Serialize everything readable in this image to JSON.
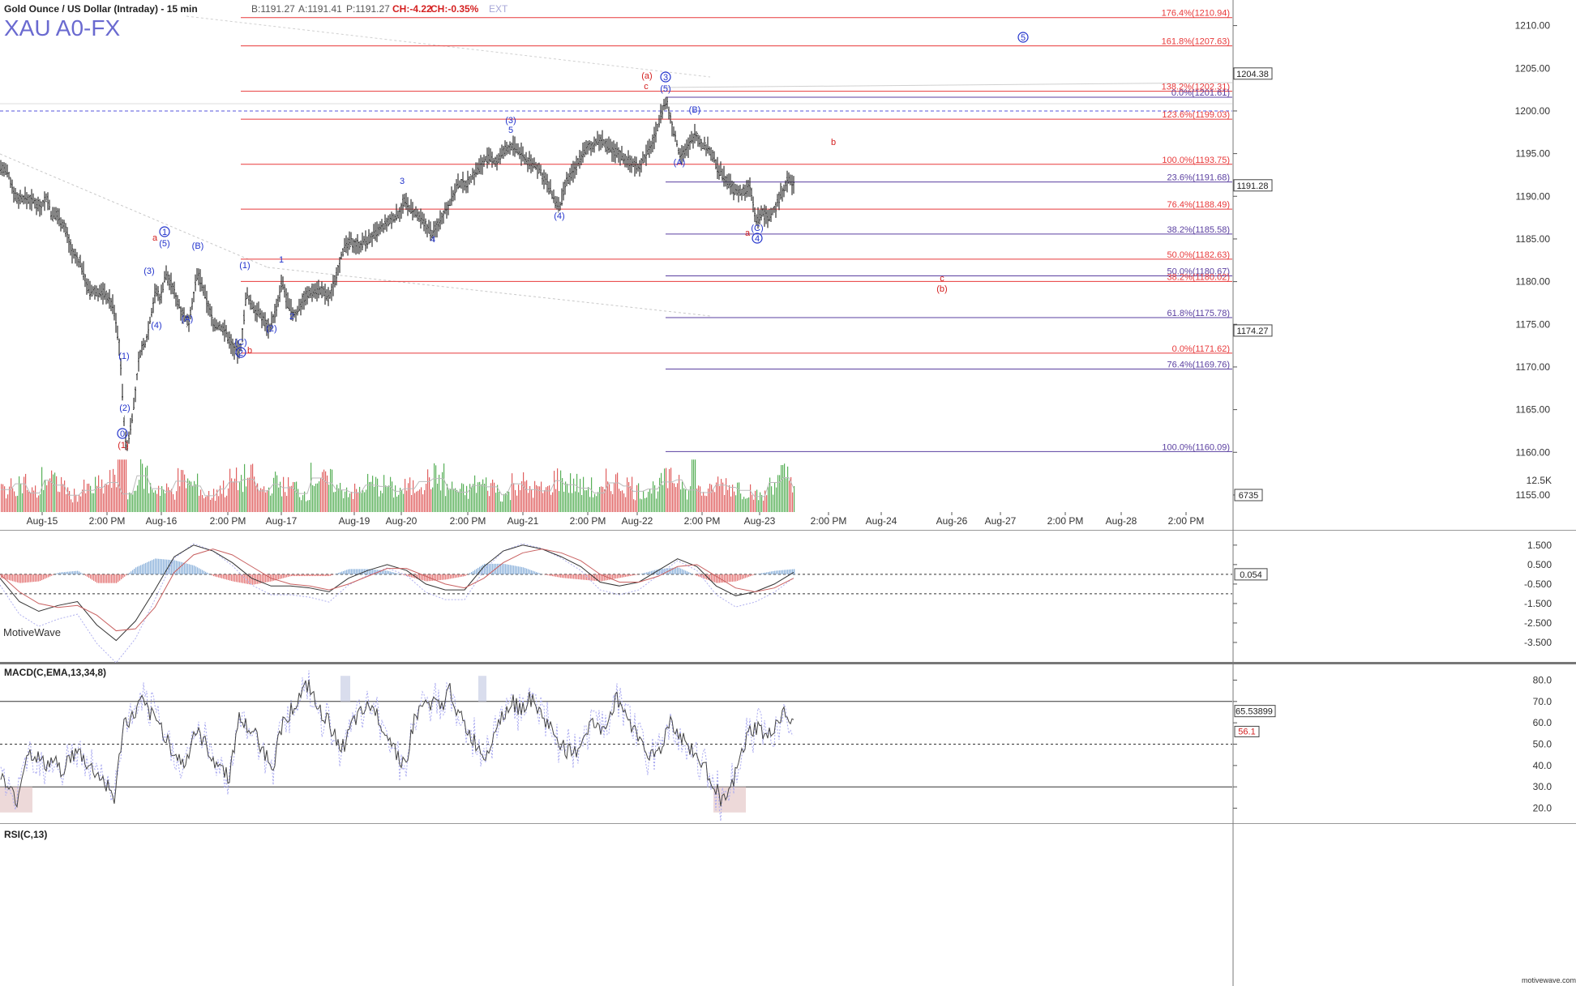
{
  "header": {
    "instrument": "Gold Ounce / US Dollar (Intraday) - 15 min",
    "bid": "B:1191.27",
    "ask": "A:1191.41",
    "price": "P:1191.27",
    "change": "CH:-4.22",
    "change_pct": "CH:-0.35%",
    "ext": "EXT",
    "symbol": "XAU A0-FX",
    "watermark": "MotiveWave",
    "brand_footer": "motivewave.com"
  },
  "colors": {
    "fib_red": "#e8393a",
    "fib_purple": "#5a3fa0",
    "wave_blue": "#2233cc",
    "wave_red": "#d42020",
    "price_bar": "#333333",
    "vol_green": "#58b058",
    "vol_red": "#e06060",
    "macd_up": "#8fb4dc",
    "macd_down": "#e57a7a",
    "rsi_line": "#444444",
    "rsi_dotted": "#a8a8f0"
  },
  "chart_data": [
    {
      "type": "line",
      "title": "Gold Ounce / US Dollar (Intraday) - 15 min",
      "ylim": [
        1153,
        1213
      ],
      "yticks": [
        1155,
        1160,
        1165,
        1170,
        1175,
        1180,
        1185,
        1190,
        1195,
        1200,
        1205,
        1210
      ],
      "x_labels": [
        "Aug-15",
        "2:00 PM",
        "Aug-16",
        "2:00 PM",
        "Aug-17",
        "Aug-19",
        "Aug-20",
        "2:00 PM",
        "Aug-21",
        "2:00 PM",
        "Aug-22",
        "2:00 PM",
        "Aug-23",
        "2:00 PM",
        "Aug-24",
        "Aug-26",
        "Aug-27",
        "2:00 PM",
        "Aug-28",
        "2:00 PM"
      ],
      "x_label_positions": [
        52,
        132,
        199,
        281,
        347,
        437,
        495,
        577,
        645,
        725,
        786,
        866,
        937,
        1022,
        1087,
        1174,
        1234,
        1314,
        1383,
        1463
      ],
      "price_path": [
        [
          0,
          1193.5
        ],
        [
          10,
          1192.6
        ],
        [
          20,
          1189.8
        ],
        [
          30,
          1189.8
        ],
        [
          40,
          1189.5
        ],
        [
          50,
          1188.8
        ],
        [
          58,
          1190.0
        ],
        [
          64,
          1187.5
        ],
        [
          70,
          1188.0
        ],
        [
          80,
          1186.3
        ],
        [
          90,
          1183.2
        ],
        [
          100,
          1182.0
        ],
        [
          110,
          1178.8
        ],
        [
          120,
          1178.8
        ],
        [
          130,
          1178.6
        ],
        [
          140,
          1177.0
        ],
        [
          148,
          1172.0
        ],
        [
          152,
          1165.0
        ],
        [
          156,
          1160.0
        ],
        [
          160,
          1162.5
        ],
        [
          166,
          1166.0
        ],
        [
          172,
          1171.5
        ],
        [
          180,
          1173.0
        ],
        [
          186,
          1176.0
        ],
        [
          192,
          1179.0
        ],
        [
          198,
          1178.0
        ],
        [
          204,
          1181.0
        ],
        [
          212,
          1179.5
        ],
        [
          222,
          1177.0
        ],
        [
          232,
          1175.0
        ],
        [
          244,
          1181.0
        ],
        [
          254,
          1178.0
        ],
        [
          264,
          1175.0
        ],
        [
          276,
          1174.5
        ],
        [
          288,
          1172.2
        ],
        [
          296,
          1171.5
        ],
        [
          304,
          1178.5
        ],
        [
          312,
          1177.0
        ],
        [
          322,
          1176.0
        ],
        [
          332,
          1174.5
        ],
        [
          342,
          1177.0
        ],
        [
          348,
          1180.0
        ],
        [
          356,
          1177.0
        ],
        [
          364,
          1176.0
        ],
        [
          374,
          1178.0
        ],
        [
          386,
          1179.0
        ],
        [
          396,
          1179.0
        ],
        [
          406,
          1178.0
        ],
        [
          414,
          1180.5
        ],
        [
          422,
          1183.5
        ],
        [
          432,
          1184.6
        ],
        [
          444,
          1184.3
        ],
        [
          456,
          1185.0
        ],
        [
          468,
          1186.0
        ],
        [
          480,
          1187.0
        ],
        [
          492,
          1188.0
        ],
        [
          498,
          1189.4
        ],
        [
          506,
          1188.5
        ],
        [
          516,
          1187.5
        ],
        [
          526,
          1186.5
        ],
        [
          534,
          1185.5
        ],
        [
          544,
          1187.5
        ],
        [
          554,
          1189.2
        ],
        [
          566,
          1191.5
        ],
        [
          576,
          1191.5
        ],
        [
          588,
          1193.0
        ],
        [
          600,
          1194.5
        ],
        [
          612,
          1194.0
        ],
        [
          624,
          1195.5
        ],
        [
          632,
          1195.9
        ],
        [
          642,
          1195.0
        ],
        [
          652,
          1194.0
        ],
        [
          662,
          1193.5
        ],
        [
          672,
          1192.0
        ],
        [
          682,
          1190.0
        ],
        [
          690,
          1188.4
        ],
        [
          698,
          1191.5
        ],
        [
          708,
          1193.0
        ],
        [
          718,
          1195.0
        ],
        [
          730,
          1196.0
        ],
        [
          742,
          1196.6
        ],
        [
          752,
          1195.5
        ],
        [
          764,
          1195.0
        ],
        [
          776,
          1194.0
        ],
        [
          788,
          1193.5
        ],
        [
          798,
          1195.0
        ],
        [
          808,
          1197.0
        ],
        [
          816,
          1200.0
        ],
        [
          822,
          1201.0
        ],
        [
          830,
          1198.0
        ],
        [
          838,
          1195.0
        ],
        [
          848,
          1195.5
        ],
        [
          858,
          1197.5
        ],
        [
          866,
          1196.0
        ],
        [
          876,
          1195.5
        ],
        [
          886,
          1193.0
        ],
        [
          896,
          1192.0
        ],
        [
          906,
          1190.5
        ],
        [
          916,
          1190.5
        ],
        [
          926,
          1191.0
        ],
        [
          932,
          1187.0
        ],
        [
          940,
          1188.0
        ],
        [
          948,
          1187.5
        ],
        [
          956,
          1188.5
        ],
        [
          964,
          1190.5
        ],
        [
          972,
          1192.0
        ],
        [
          979,
          1191.3
        ]
      ]
    },
    {
      "type": "bar",
      "title": "Volume",
      "ylim": [
        0,
        13500
      ],
      "yticks": [
        "12.5K"
      ],
      "last_value": "6735",
      "series": [
        {
          "values": [
            5100,
            6400,
            4300,
            7200,
            6100,
            3800,
            4900,
            5600,
            6700,
            4100,
            8200,
            5300,
            4600,
            7000,
            5900,
            3700,
            5200,
            6800,
            7400,
            4800,
            6300,
            5500,
            4200,
            7700,
            6600,
            5000,
            4400,
            6100,
            5800,
            4700,
            5300,
            6900,
            7600,
            5200,
            4500,
            6000,
            5700,
            3900,
            6400,
            5100,
            4800,
            7100,
            6200,
            5400,
            4300,
            6600,
            5900,
            4700,
            5200,
            6800,
            7300,
            5000,
            4400,
            6100,
            5600,
            4900,
            3500,
            6700,
            7800,
            5400
          ]
        }
      ]
    },
    {
      "type": "line",
      "title": "MACD(C,EMA,13,34,8)",
      "ylim": [
        -4.5,
        2.2
      ],
      "yticks": [
        1.5,
        0.5,
        -0.5,
        -1.5,
        -2.5,
        -3.5
      ],
      "last_value": "0.054",
      "series": [
        {
          "name": "MACD",
          "values": [
            -0.2,
            -1.4,
            -1.9,
            -1.6,
            -1.4,
            -2.6,
            -3.4,
            -2.4,
            -0.8,
            0.9,
            1.5,
            1.2,
            0.6,
            -0.2,
            -0.6,
            -0.6,
            -0.7,
            -0.9,
            -0.2,
            0.2,
            0.5,
            0.2,
            -0.5,
            -0.8,
            -0.8,
            0.4,
            1.2,
            1.5,
            1.3,
            0.9,
            0.4,
            -0.4,
            -0.6,
            -0.4,
            0.2,
            0.8,
            0.4,
            -0.6,
            -1.1,
            -0.9,
            -0.5,
            0.1
          ]
        },
        {
          "name": "Signal",
          "values": [
            0.0,
            -0.9,
            -1.5,
            -1.7,
            -1.6,
            -2.1,
            -2.9,
            -2.8,
            -1.7,
            0.1,
            1.0,
            1.3,
            1.0,
            0.4,
            -0.2,
            -0.5,
            -0.6,
            -0.8,
            -0.5,
            -0.1,
            0.3,
            0.3,
            -0.1,
            -0.5,
            -0.7,
            -0.2,
            0.6,
            1.1,
            1.3,
            1.1,
            0.7,
            0.0,
            -0.4,
            -0.4,
            -0.1,
            0.4,
            0.5,
            -0.1,
            -0.7,
            -0.9,
            -0.7,
            -0.2
          ]
        }
      ]
    },
    {
      "type": "line",
      "title": "RSI(C,13)",
      "ylim": [
        13,
        87
      ],
      "yticks": [
        80.0,
        70.0,
        60.0,
        50.0,
        40.0,
        30.0,
        20.0
      ],
      "reference_lines": [
        70,
        50,
        30
      ],
      "last_value": "56.1",
      "last_value_2": "65.53899",
      "series": [
        {
          "name": "RSI",
          "values": [
            35,
            28,
            24,
            46,
            45,
            40,
            42,
            38,
            44,
            46,
            40,
            36,
            32,
            24,
            60,
            62,
            70,
            64,
            60,
            52,
            44,
            40,
            56,
            52,
            44,
            40,
            34,
            62,
            58,
            54,
            46,
            40,
            60,
            66,
            72,
            78,
            66,
            62,
            54,
            48,
            60,
            64,
            68,
            62,
            54,
            46,
            40,
            62,
            68,
            70,
            66,
            76,
            64,
            56,
            50,
            44,
            56,
            64,
            70,
            66,
            72,
            66,
            60,
            54,
            48,
            44,
            52,
            60,
            56,
            62,
            72,
            64,
            56,
            50,
            44,
            48,
            62,
            54,
            50,
            44,
            38,
            32,
            22,
            30,
            44,
            56,
            58,
            52,
            60,
            64,
            58
          ]
        }
      ]
    }
  ],
  "fib_levels": [
    {
      "label": "176.4%(1210.94)",
      "value": 1210.94,
      "color": "red",
      "x1": 297
    },
    {
      "label": "161.8%(1207.63)",
      "value": 1207.63,
      "color": "red",
      "x1": 297
    },
    {
      "label": "138.2%(1202.31)",
      "value": 1202.31,
      "color": "red",
      "x1": 297
    },
    {
      "label": "0.0%(1201.61)",
      "value": 1201.61,
      "color": "purple",
      "x1": 821
    },
    {
      "label": "123.6%(1199.03)",
      "value": 1199.03,
      "color": "red",
      "x1": 297
    },
    {
      "label": "100.0%(1193.75)",
      "value": 1193.75,
      "color": "red",
      "x1": 297
    },
    {
      "label": "23.6%(1191.68)",
      "value": 1191.68,
      "color": "purple",
      "x1": 821
    },
    {
      "label": "76.4%(1188.49)",
      "value": 1188.49,
      "color": "red",
      "x1": 297
    },
    {
      "label": "38.2%(1185.58)",
      "value": 1185.58,
      "color": "purple",
      "x1": 821
    },
    {
      "label": "50.0%(1182.63)",
      "value": 1182.63,
      "color": "red",
      "x1": 297
    },
    {
      "label": "50.0%(1180.67)",
      "value": 1180.67,
      "color": "purple",
      "x1": 821
    },
    {
      "label": "38.2%(1180.02)",
      "value": 1180.02,
      "color": "red",
      "x1": 297
    },
    {
      "label": "61.8%(1175.78)",
      "value": 1175.78,
      "color": "purple",
      "x1": 821
    },
    {
      "label": "0.0%(1171.62)",
      "value": 1171.62,
      "color": "red",
      "x1": 297
    },
    {
      "label": "76.4%(1169.76)",
      "value": 1169.76,
      "color": "purple",
      "x1": 821
    },
    {
      "label": "100.0%(1160.09)",
      "value": 1160.09,
      "color": "purple",
      "x1": 821
    }
  ],
  "price_tags": [
    {
      "label": "1204.38",
      "value": 1204.38
    },
    {
      "label": "1191.28",
      "value": 1191.28
    },
    {
      "label": "1174.27",
      "value": 1174.27
    }
  ],
  "wave_labels": [
    {
      "text": "1",
      "x": 203,
      "y": 290,
      "color": "blue",
      "circle": true
    },
    {
      "text": "(5)",
      "x": 203,
      "y": 304,
      "color": "blue"
    },
    {
      "text": "a",
      "x": 191,
      "y": 297,
      "color": "red"
    },
    {
      "text": "(B)",
      "x": 244,
      "y": 307,
      "color": "blue"
    },
    {
      "text": "(3)",
      "x": 184,
      "y": 338,
      "color": "blue"
    },
    {
      "text": "(A)",
      "x": 231,
      "y": 397,
      "color": "blue"
    },
    {
      "text": "(4)",
      "x": 193,
      "y": 405,
      "color": "blue"
    },
    {
      "text": "(1)",
      "x": 153,
      "y": 443,
      "color": "blue"
    },
    {
      "text": "(2)",
      "x": 154,
      "y": 507,
      "color": "blue"
    },
    {
      "text": "0",
      "x": 151,
      "y": 539,
      "color": "blue",
      "circle": true
    },
    {
      "text": "(1)",
      "x": 152,
      "y": 553,
      "color": "red"
    },
    {
      "text": "(1)",
      "x": 302,
      "y": 331,
      "color": "blue"
    },
    {
      "text": "(C)",
      "x": 297,
      "y": 426,
      "color": "blue"
    },
    {
      "text": "2",
      "x": 297,
      "y": 439,
      "color": "blue",
      "circle": true
    },
    {
      "text": "b",
      "x": 308,
      "y": 436,
      "color": "red"
    },
    {
      "text": "1",
      "x": 347,
      "y": 324,
      "color": "blue"
    },
    {
      "text": "(2)",
      "x": 335,
      "y": 409,
      "color": "blue"
    },
    {
      "text": "2",
      "x": 360,
      "y": 394,
      "color": "blue"
    },
    {
      "text": "3",
      "x": 496,
      "y": 227,
      "color": "blue"
    },
    {
      "text": "4",
      "x": 534,
      "y": 299,
      "color": "blue"
    },
    {
      "text": "(3)",
      "x": 630,
      "y": 152,
      "color": "blue"
    },
    {
      "text": "5",
      "x": 630,
      "y": 164,
      "color": "blue"
    },
    {
      "text": "(4)",
      "x": 690,
      "y": 270,
      "color": "blue"
    },
    {
      "text": "(a)",
      "x": 798,
      "y": 97,
      "color": "red"
    },
    {
      "text": "c",
      "x": 797,
      "y": 110,
      "color": "red"
    },
    {
      "text": "3",
      "x": 821,
      "y": 99,
      "color": "blue",
      "circle": true
    },
    {
      "text": "(5)",
      "x": 821,
      "y": 113,
      "color": "blue"
    },
    {
      "text": "(B)",
      "x": 857,
      "y": 139,
      "color": "blue"
    },
    {
      "text": "(A)",
      "x": 838,
      "y": 204,
      "color": "blue"
    },
    {
      "text": "b",
      "x": 1028,
      "y": 179,
      "color": "red"
    },
    {
      "text": "a",
      "x": 922,
      "y": 291,
      "color": "red"
    },
    {
      "text": "(C)",
      "x": 934,
      "y": 285,
      "color": "blue"
    },
    {
      "text": "4",
      "x": 934,
      "y": 298,
      "color": "blue",
      "circle": true
    },
    {
      "text": "5",
      "x": 1262,
      "y": 50,
      "color": "blue",
      "circle": true
    },
    {
      "text": "c",
      "x": 1162,
      "y": 347,
      "color": "red"
    },
    {
      "text": "(b)",
      "x": 1162,
      "y": 360,
      "color": "red"
    }
  ]
}
